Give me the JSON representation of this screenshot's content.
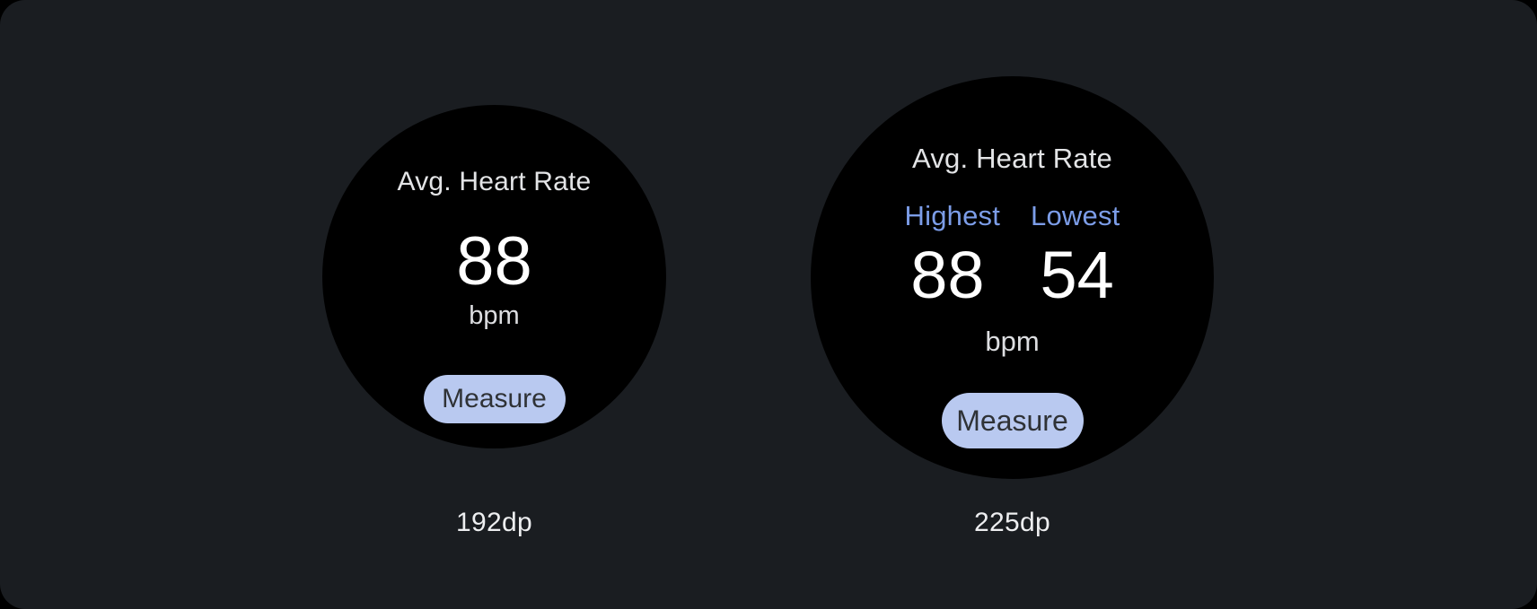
{
  "colors": {
    "card_background": "#1A1D21",
    "outer_background": "#000000",
    "watch_background": "#000000",
    "title_text": "#E3E4E6",
    "value_text": "#FFFFFF",
    "unit_text": "#DDDEE1",
    "accent_blue": "#7C9DE8",
    "button_background": "#B9C9F0",
    "button_text": "#2F3236",
    "caption_text": "#EDEEF0"
  },
  "watches": [
    {
      "name": "watch-192dp",
      "title": "Avg. Heart Rate",
      "value": "88",
      "unit": "bpm",
      "button_label": "Measure",
      "caption": "192dp"
    },
    {
      "name": "watch-225dp",
      "title": "Avg. Heart Rate",
      "stats": [
        {
          "label": "Highest",
          "value": "88"
        },
        {
          "label": "Lowest",
          "value": "54"
        }
      ],
      "unit": "bpm",
      "button_label": "Measure",
      "caption": "225dp"
    }
  ]
}
